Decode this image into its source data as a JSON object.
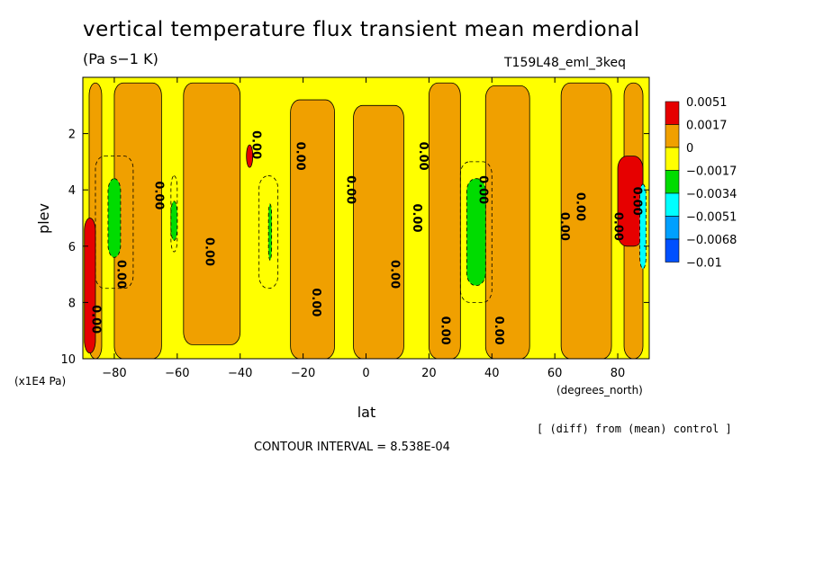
{
  "chart_data": {
    "type": "heatmap",
    "title": "vertical temperature flux transient mean merdional",
    "units": "(Pa s−1 K)",
    "experiment": "T159L48_eml_3keq",
    "xlabel": "lat",
    "xunits": "(degrees_north)",
    "ylabel": "plev",
    "yunits": "(x1E4 Pa)",
    "x_ticks": [
      -80,
      -60,
      -40,
      -20,
      0,
      20,
      40,
      60,
      80
    ],
    "x_tick_labels": [
      "−80",
      "−60",
      "−40",
      "−20",
      "0",
      "20",
      "40",
      "60",
      "80"
    ],
    "y_ticks": [
      2,
      4,
      6,
      8,
      10
    ],
    "y_tick_labels": [
      "2",
      "4",
      "6",
      "8",
      "10"
    ],
    "xlim": [
      -90,
      90
    ],
    "ylim": [
      10,
      0
    ],
    "note": "[ (diff) from (mean) control ]",
    "contour_interval": "CONTOUR INTERVAL = 8.538E-04",
    "legend_labels": [
      "0.0051",
      "0.0017",
      "0",
      "−0.0017",
      "−0.0034",
      "−0.0051",
      "−0.0068",
      "−0.01"
    ],
    "legend_colors": [
      "#e60000",
      "#f0a000",
      "#ffff00",
      "#00dc00",
      "#00ffff",
      "#00a0ff",
      "#0050ff"
    ],
    "background_level": 0,
    "regions": [
      {
        "level": 0.0017,
        "lat": [
          -88,
          -84
        ],
        "plev": [
          0.2,
          10
        ]
      },
      {
        "level": 0.0017,
        "lat": [
          -80,
          -65
        ],
        "plev": [
          0.2,
          10
        ]
      },
      {
        "level": 0.0017,
        "lat": [
          -58,
          -40
        ],
        "plev": [
          0.2,
          9.5
        ]
      },
      {
        "level": 0.0017,
        "lat": [
          -24,
          -10
        ],
        "plev": [
          0.8,
          10
        ]
      },
      {
        "level": 0.0017,
        "lat": [
          -4,
          12
        ],
        "plev": [
          1.0,
          10
        ]
      },
      {
        "level": 0.0017,
        "lat": [
          20,
          30
        ],
        "plev": [
          0.2,
          10
        ]
      },
      {
        "level": 0.0017,
        "lat": [
          38,
          52
        ],
        "plev": [
          0.3,
          10
        ]
      },
      {
        "level": 0.0017,
        "lat": [
          62,
          78
        ],
        "plev": [
          0.2,
          10
        ]
      },
      {
        "level": 0.0017,
        "lat": [
          82,
          88
        ],
        "plev": [
          0.2,
          10
        ]
      },
      {
        "level": -0.0017,
        "lat": [
          -86,
          -74
        ],
        "plev": [
          2.8,
          7.5
        ]
      },
      {
        "level": -0.0017,
        "lat": [
          -62,
          -60
        ],
        "plev": [
          3.5,
          6.2
        ]
      },
      {
        "level": -0.0017,
        "lat": [
          -34,
          -28
        ],
        "plev": [
          3.5,
          7.5
        ]
      },
      {
        "level": -0.0017,
        "lat": [
          30,
          40
        ],
        "plev": [
          3.0,
          8.0
        ]
      },
      {
        "level": -0.0034,
        "lat": [
          -82,
          -78
        ],
        "plev": [
          3.6,
          6.4
        ]
      },
      {
        "level": -0.0034,
        "lat": [
          -62,
          -60
        ],
        "plev": [
          4.4,
          5.8
        ]
      },
      {
        "level": -0.0034,
        "lat": [
          -31,
          -30
        ],
        "plev": [
          4.5,
          6.5
        ]
      },
      {
        "level": -0.0034,
        "lat": [
          32,
          38
        ],
        "plev": [
          3.6,
          7.4
        ]
      },
      {
        "level": 0.0051,
        "lat": [
          -89.5,
          -86
        ],
        "plev": [
          5.0,
          9.8
        ]
      },
      {
        "level": 0.0051,
        "lat": [
          -38,
          -36
        ],
        "plev": [
          2.4,
          3.2
        ]
      },
      {
        "level": 0.0051,
        "lat": [
          80,
          88
        ],
        "plev": [
          2.8,
          6.0
        ]
      },
      {
        "level": -0.0051,
        "lat": [
          87,
          89
        ],
        "plev": [
          3.8,
          6.8
        ]
      }
    ],
    "contour_labels": [
      {
        "text": "0.00",
        "lat": -66,
        "plev": 4.2
      },
      {
        "text": "0.00",
        "lat": -78,
        "plev": 7.0
      },
      {
        "text": "0.00",
        "lat": -50,
        "plev": 6.2
      },
      {
        "text": "0.00",
        "lat": -86,
        "plev": 8.6
      },
      {
        "text": "0.00",
        "lat": -35,
        "plev": 2.4
      },
      {
        "text": "0.00",
        "lat": -21,
        "plev": 2.8
      },
      {
        "text": "0.00",
        "lat": -5,
        "plev": 4.0
      },
      {
        "text": "0.00",
        "lat": -16,
        "plev": 8.0
      },
      {
        "text": "0.00",
        "lat": 9,
        "plev": 7.0
      },
      {
        "text": "0.00",
        "lat": 16,
        "plev": 5.0
      },
      {
        "text": "0.00",
        "lat": 18,
        "plev": 2.8
      },
      {
        "text": "0.00",
        "lat": 25,
        "plev": 9.0
      },
      {
        "text": "0.00",
        "lat": 37,
        "plev": 4.0
      },
      {
        "text": "0.00",
        "lat": 42,
        "plev": 9.0
      },
      {
        "text": "0.00",
        "lat": 63,
        "plev": 5.3
      },
      {
        "text": "0.00",
        "lat": 68,
        "plev": 4.6
      },
      {
        "text": "0.00",
        "lat": 80,
        "plev": 5.3
      },
      {
        "text": "0.00",
        "lat": 86,
        "plev": 4.4
      }
    ]
  },
  "labels": {
    "title": "vertical temperature flux transient mean merdional",
    "units": "(Pa s−1 K)",
    "experiment": "T159L48_eml_3keq",
    "x_title": "lat",
    "x_units": "(degrees_north)",
    "y_title": "plev",
    "y_units": "(x1E4 Pa)",
    "note": "[ (diff) from (mean) control ]",
    "contour_interval": "CONTOUR INTERVAL = 8.538E-04"
  }
}
